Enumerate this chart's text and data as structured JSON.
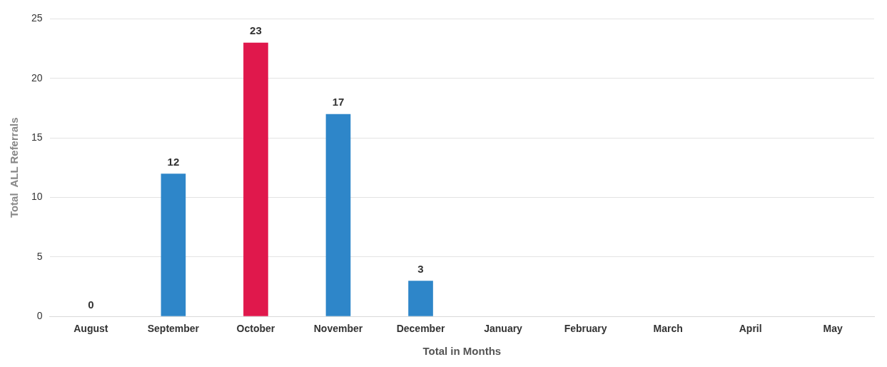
{
  "chart_data": {
    "type": "bar",
    "xlabel": "Total in Months",
    "ylabel": "Total  ALL Referrals",
    "categories": [
      "August",
      "September",
      "October",
      "November",
      "December",
      "January",
      "February",
      "March",
      "April",
      "May"
    ],
    "values": [
      0,
      12,
      23,
      17,
      3,
      null,
      null,
      null,
      null,
      null
    ],
    "colors": [
      "#2e86c9",
      "#2e86c9",
      "#e0184c",
      "#2e86c9",
      "#2e86c9",
      "#2e86c9",
      "#2e86c9",
      "#2e86c9",
      "#2e86c9",
      "#2e86c9"
    ],
    "value_labels": [
      "0",
      "12",
      "23",
      "17",
      "3",
      null,
      null,
      null,
      null,
      null
    ],
    "ylim": [
      0,
      25
    ],
    "yticks": [
      0,
      5,
      10,
      15,
      20,
      25
    ],
    "grid": "y",
    "legend": false
  }
}
